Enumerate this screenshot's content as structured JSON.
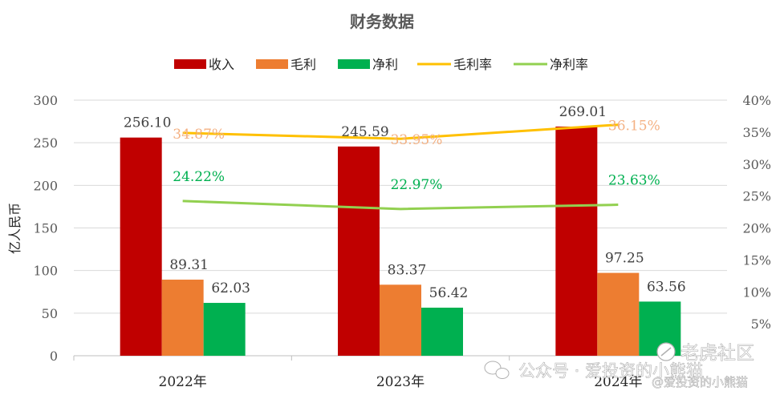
{
  "chart_data": {
    "type": "bar",
    "title": "财务数据",
    "ylabel": "亿人民币",
    "categories": [
      "2022年",
      "2023年",
      "2024年"
    ],
    "ylim": [
      0,
      300
    ],
    "yticks": [
      "0",
      "50",
      "100",
      "150",
      "200",
      "250",
      "300"
    ],
    "y2lim": [
      0,
      0.4
    ],
    "y2ticks": [
      "5%",
      "10%",
      "15%",
      "20%",
      "25%",
      "30%",
      "35%",
      "40%"
    ],
    "grid": true,
    "legend_position": "top",
    "series": [
      {
        "name": "收入",
        "kind": "bar",
        "axis": "left",
        "color": "#C00000",
        "values": [
          256.1,
          245.59,
          269.01
        ],
        "labels": [
          "256.10",
          "245.59",
          "269.01"
        ]
      },
      {
        "name": "毛利",
        "kind": "bar",
        "axis": "left",
        "color": "#ED7D31",
        "values": [
          89.31,
          83.37,
          97.25
        ],
        "labels": [
          "89.31",
          "83.37",
          "97.25"
        ]
      },
      {
        "name": "净利",
        "kind": "bar",
        "axis": "left",
        "color": "#00B050",
        "values": [
          62.03,
          56.42,
          63.56
        ],
        "labels": [
          "62.03",
          "56.42",
          "63.56"
        ]
      },
      {
        "name": "毛利率",
        "kind": "line",
        "axis": "right",
        "color": "#FFC000",
        "label_color": "#F4B183",
        "values": [
          0.3487,
          0.3395,
          0.3615
        ],
        "labels": [
          "34.87%",
          "33.95%",
          "36.15%"
        ]
      },
      {
        "name": "净利率",
        "kind": "line",
        "axis": "right",
        "color": "#92D050",
        "label_color": "#00B050",
        "values": [
          0.2422,
          0.2297,
          0.2363
        ],
        "labels": [
          "24.22%",
          "22.97%",
          "23.63%"
        ]
      }
    ]
  },
  "watermarks": [
    "公众号 · 爱投资的小熊猫",
    "老虎社区",
    "@爱投资的小熊猫"
  ]
}
